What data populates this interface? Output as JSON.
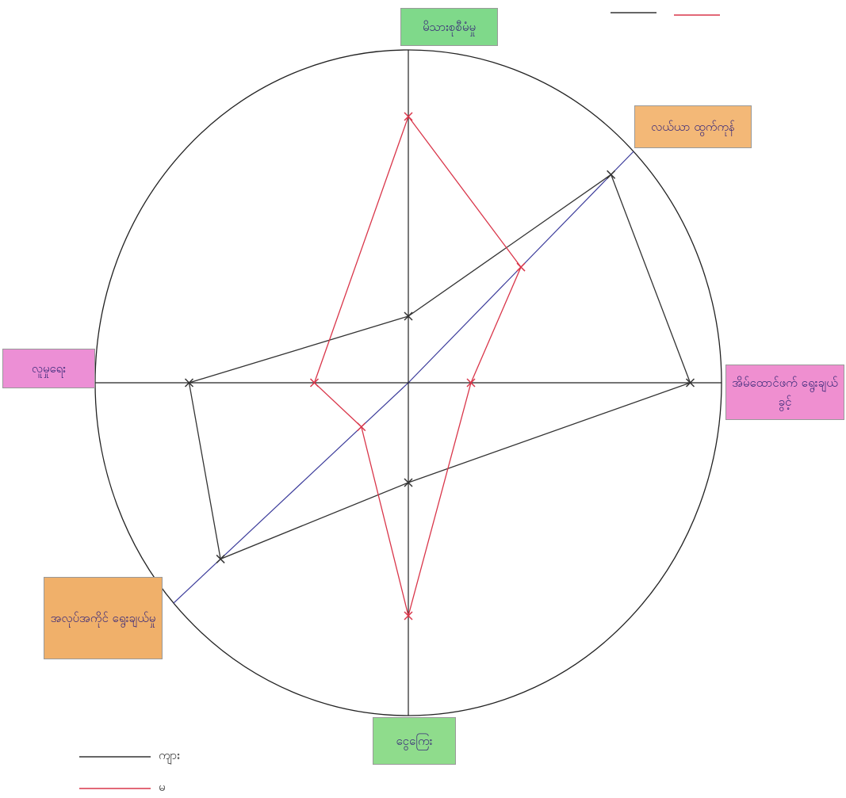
{
  "chart_data": {
    "type": "radar",
    "categories": [
      "မိသားစုစီမံမှု",
      "လယ်ယာ ထွက်ကုန်",
      "အိမ်ထောင်ဖက် ရွေးချယ်ခွင့်",
      "ငွေကြေး",
      "အလုပ်အကိုင် ရွေးချယ်မှု",
      "လူမှုရေး"
    ],
    "rlim": [
      0,
      10
    ],
    "series": [
      {
        "name": "ကျား",
        "color": "#333333",
        "values": [
          2,
          9,
          9,
          3,
          8,
          7
        ]
      },
      {
        "name": "မ",
        "color": "#d9364a",
        "values": [
          8,
          5,
          2,
          7,
          2,
          3
        ]
      }
    ]
  }
}
